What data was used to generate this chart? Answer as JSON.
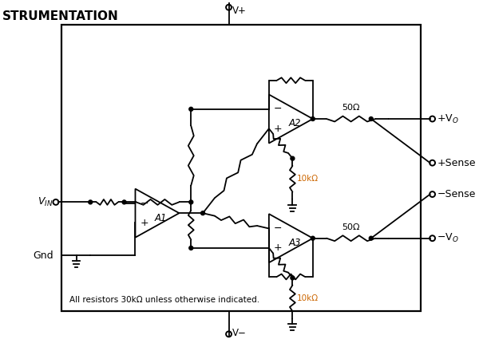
{
  "title": "STRUMENTATION",
  "bg_color": "#ffffff",
  "line_color": "#000000",
  "gray_color": "#888888",
  "note": "All resistors 30kΩ unless otherwise indicated.",
  "vplus_label": "V+",
  "vminus_label": "V−",
  "r50_label": "50Ω",
  "r10k_label": "10kΩ",
  "A1_label": "A1",
  "A2_label": "A2",
  "A3_label": "A3"
}
